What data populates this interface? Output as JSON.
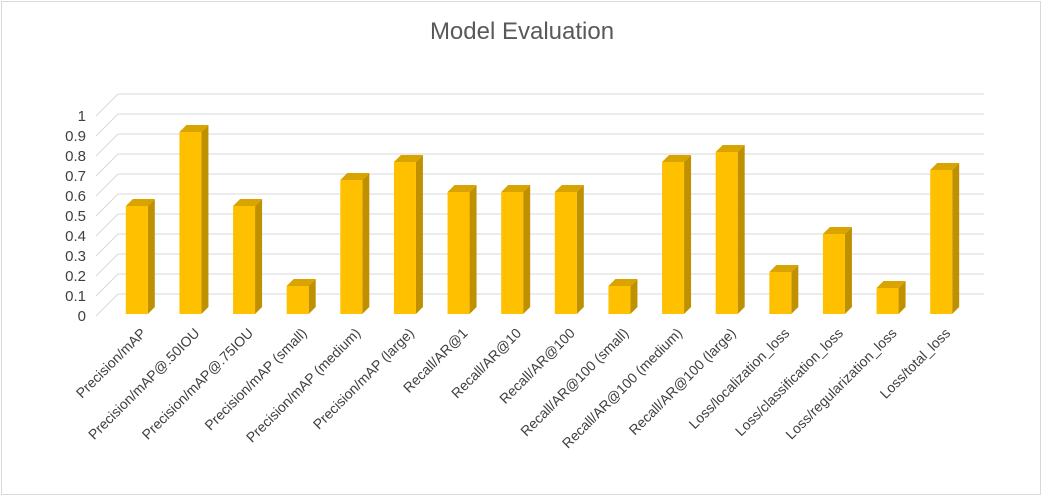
{
  "chart_data": {
    "type": "bar",
    "title": "Model Evaluation",
    "xlabel": "",
    "ylabel": "",
    "ylim": [
      0,
      1
    ],
    "yticks": [
      0,
      0.1,
      0.2,
      0.3,
      0.4,
      0.5,
      0.6,
      0.7,
      0.8,
      0.9,
      1
    ],
    "ytick_labels": [
      "0",
      "0.1",
      "0.2",
      "0.3",
      "0.4",
      "0.5",
      "0.6",
      "0.7",
      "0.8",
      "0.9",
      "1"
    ],
    "grid": true,
    "legend": "none",
    "categories": [
      "Precision/mAP",
      "Precision/mAP@.50IOU",
      "Precision/mAP@.75IOU",
      "Precision/mAP (small)",
      "Precision/mAP (medium)",
      "Precision/mAP (large)",
      "Recall/AR@1",
      "Recall/AR@10",
      "Recall/AR@100",
      "Recall/AR@100 (small)",
      "Recall/AR@100 (medium)",
      "Recall/AR@100 (large)",
      "Loss/localization_loss",
      "Loss/classification_loss",
      "Loss/regularization_loss",
      "Loss/total_loss"
    ],
    "values": [
      0.54,
      0.91,
      0.54,
      0.14,
      0.67,
      0.76,
      0.61,
      0.61,
      0.61,
      0.14,
      0.76,
      0.81,
      0.21,
      0.4,
      0.13,
      0.72
    ],
    "colors": {
      "bar_front": "#FFC000",
      "bar_side": "#BF9000",
      "bar_top": "#D9A300",
      "grid": "#D9D9D9"
    }
  }
}
